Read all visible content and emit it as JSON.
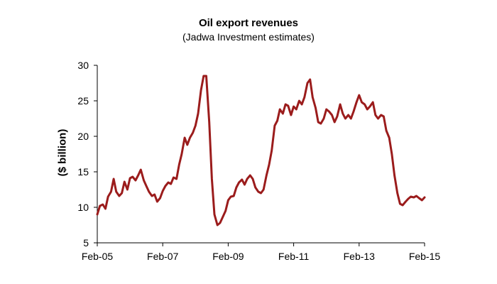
{
  "chart_data": {
    "type": "line",
    "title": "Oil export revenues",
    "subtitle": "(Jadwa Investment estimates)",
    "ylabel": "($ billion)",
    "xlabel": "",
    "ylim": [
      5,
      30
    ],
    "yticks": [
      5,
      10,
      15,
      20,
      25,
      30
    ],
    "xlim": [
      2005.0,
      2015.0
    ],
    "xticks": [
      {
        "label": "Feb-05",
        "value": 2005.0
      },
      {
        "label": "Feb-07",
        "value": 2007.0
      },
      {
        "label": "Feb-09",
        "value": 2009.0
      },
      {
        "label": "Feb-11",
        "value": 2011.0
      },
      {
        "label": "Feb-13",
        "value": 2013.0
      },
      {
        "label": "Feb-15",
        "value": 2015.0
      }
    ],
    "line_color": "#9b1c1c",
    "series": [
      {
        "name": "Oil export revenues",
        "x": [
          2005.0,
          2005.08,
          2005.17,
          2005.25,
          2005.33,
          2005.42,
          2005.5,
          2005.58,
          2005.67,
          2005.75,
          2005.83,
          2005.92,
          2006.0,
          2006.08,
          2006.17,
          2006.25,
          2006.33,
          2006.42,
          2006.5,
          2006.58,
          2006.67,
          2006.75,
          2006.83,
          2006.92,
          2007.0,
          2007.08,
          2007.17,
          2007.25,
          2007.33,
          2007.42,
          2007.5,
          2007.58,
          2007.67,
          2007.75,
          2007.83,
          2007.92,
          2008.0,
          2008.08,
          2008.17,
          2008.25,
          2008.33,
          2008.42,
          2008.5,
          2008.58,
          2008.67,
          2008.75,
          2008.83,
          2008.92,
          2009.0,
          2009.08,
          2009.17,
          2009.25,
          2009.33,
          2009.42,
          2009.5,
          2009.58,
          2009.67,
          2009.75,
          2009.83,
          2009.92,
          2010.0,
          2010.08,
          2010.17,
          2010.25,
          2010.33,
          2010.42,
          2010.5,
          2010.58,
          2010.67,
          2010.75,
          2010.83,
          2010.92,
          2011.0,
          2011.08,
          2011.17,
          2011.25,
          2011.33,
          2011.42,
          2011.5,
          2011.58,
          2011.67,
          2011.75,
          2011.83,
          2011.92,
          2012.0,
          2012.08,
          2012.17,
          2012.25,
          2012.33,
          2012.42,
          2012.5,
          2012.58,
          2012.67,
          2012.75,
          2012.83,
          2012.92,
          2013.0,
          2013.08,
          2013.17,
          2013.25,
          2013.33,
          2013.42,
          2013.5,
          2013.58,
          2013.67,
          2013.75,
          2013.83,
          2013.92,
          2014.0,
          2014.08,
          2014.17,
          2014.25,
          2014.33,
          2014.42,
          2014.5,
          2014.58,
          2014.67,
          2014.75,
          2014.83,
          2014.92,
          2015.0
        ],
        "values": [
          9.0,
          10.2,
          10.4,
          9.8,
          11.5,
          12.2,
          14.0,
          12.2,
          11.6,
          12.0,
          13.6,
          12.5,
          14.1,
          14.3,
          13.8,
          14.5,
          15.3,
          13.8,
          13.0,
          12.2,
          11.6,
          11.8,
          10.8,
          11.3,
          12.3,
          13.0,
          13.5,
          13.3,
          14.2,
          14.0,
          16.0,
          17.5,
          19.8,
          18.8,
          19.8,
          20.5,
          21.5,
          23.2,
          26.5,
          28.5,
          28.5,
          22.0,
          14.0,
          9.0,
          7.5,
          7.8,
          8.6,
          9.5,
          11.0,
          11.5,
          11.6,
          12.8,
          13.5,
          13.9,
          13.2,
          14.0,
          14.5,
          14.0,
          12.8,
          12.2,
          12.0,
          12.5,
          14.5,
          16.0,
          18.0,
          21.5,
          22.2,
          23.8,
          23.2,
          24.5,
          24.3,
          23.0,
          24.2,
          23.8,
          25.0,
          24.5,
          25.5,
          27.5,
          28.0,
          25.5,
          24.0,
          22.0,
          21.8,
          22.5,
          23.8,
          23.5,
          23.0,
          22.0,
          22.8,
          24.5,
          23.2,
          22.5,
          23.0,
          22.5,
          23.5,
          24.8,
          25.8,
          24.8,
          24.5,
          23.8,
          24.2,
          24.8,
          23.0,
          22.5,
          23.0,
          22.8,
          20.8,
          19.8,
          17.5,
          14.5,
          12.0,
          10.5,
          10.3,
          10.8,
          11.2,
          11.5,
          11.4,
          11.6,
          11.3,
          11.0,
          11.4
        ]
      }
    ]
  }
}
